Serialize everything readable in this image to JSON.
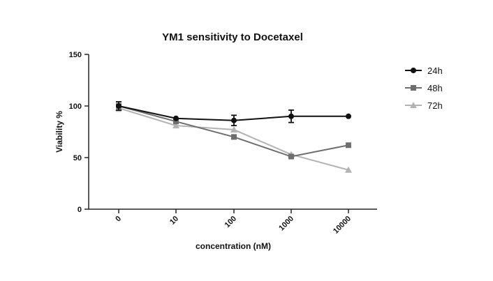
{
  "chart_data": {
    "type": "line",
    "title": "YM1 sensitivity to Docetaxel",
    "xlabel": "concentration (nM)",
    "ylabel": "Viability %",
    "categories": [
      "0",
      "10",
      "100",
      "1000",
      "10000"
    ],
    "ylim": [
      0,
      150
    ],
    "yticks": [
      "0",
      "50",
      "100",
      "150"
    ],
    "legend_position": "right",
    "series": [
      {
        "name": "24h",
        "marker": "circle",
        "color": "#111111",
        "values": [
          100,
          88,
          86,
          90,
          90
        ],
        "errors": [
          4,
          1,
          5,
          6,
          1
        ]
      },
      {
        "name": "48h",
        "marker": "square",
        "color": "#6e6e6e",
        "values": [
          100,
          85,
          70,
          51,
          62
        ],
        "errors": [
          4,
          1,
          1,
          1,
          1
        ]
      },
      {
        "name": "72h",
        "marker": "triangle",
        "color": "#b3b3b3",
        "values": [
          98,
          81,
          77,
          53,
          38
        ],
        "errors": [
          3,
          1,
          1,
          1,
          1
        ]
      }
    ]
  }
}
